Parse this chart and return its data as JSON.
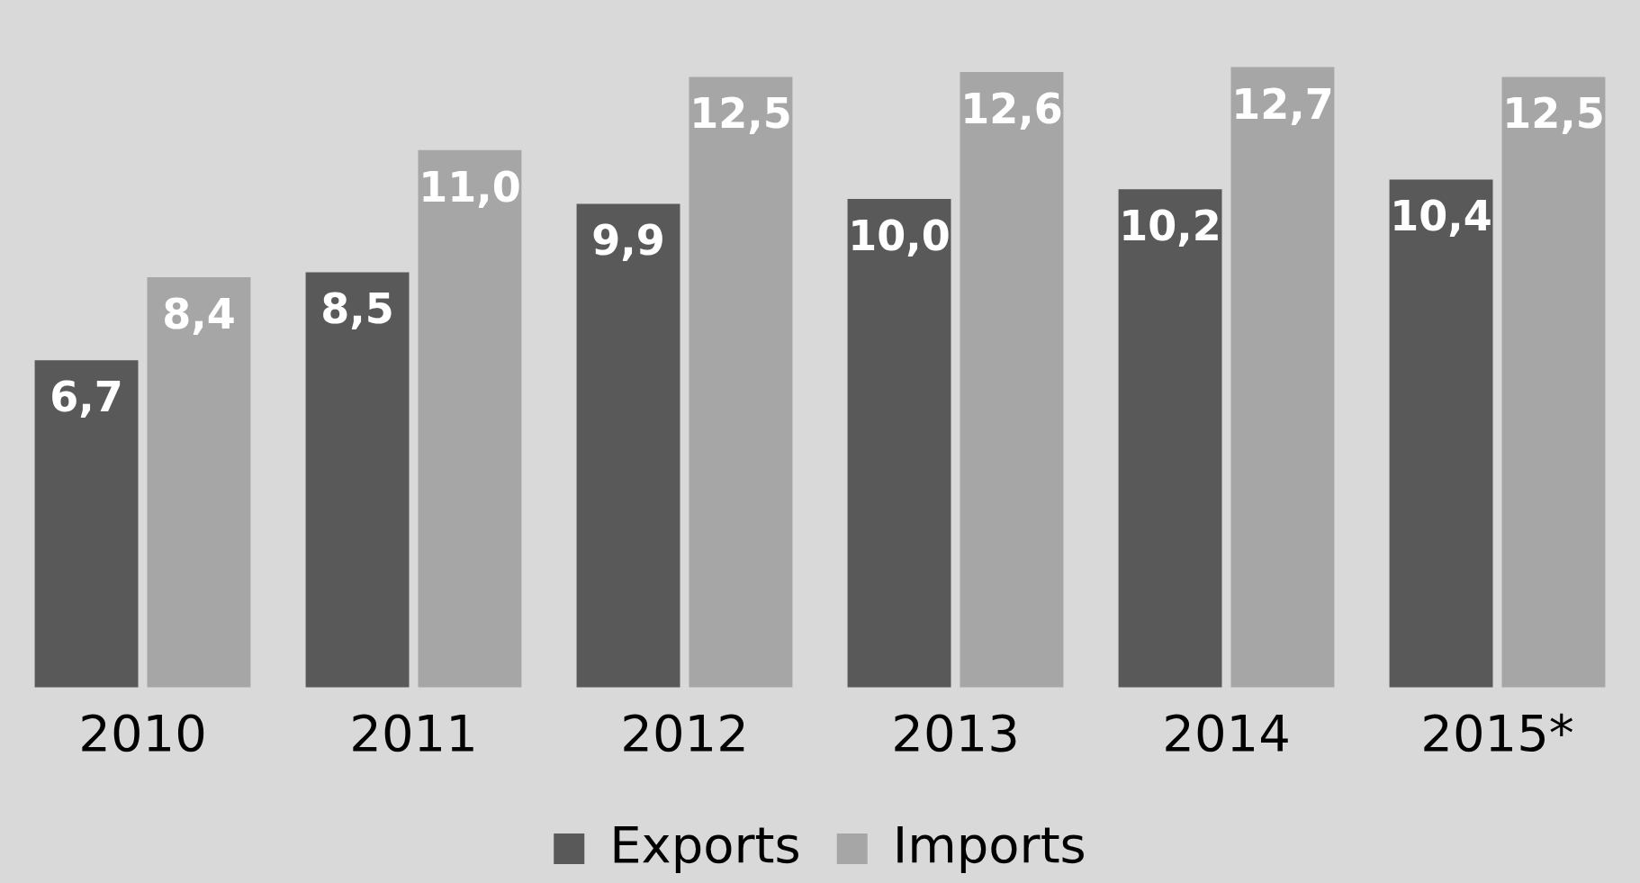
{
  "chart_data": {
    "type": "bar",
    "categories": [
      "2010",
      "2011",
      "2012",
      "2013",
      "2014",
      "2015*"
    ],
    "series": [
      {
        "name": "Exports",
        "color": "#595959",
        "values": [
          6.7,
          8.5,
          9.9,
          10.0,
          10.2,
          10.4
        ],
        "value_labels": [
          "6,7",
          "8,5",
          "9,9",
          "10,0",
          "10,2",
          "10,4"
        ]
      },
      {
        "name": "Imports",
        "color": "#a6a6a6",
        "values": [
          8.4,
          11.0,
          12.5,
          12.6,
          12.7,
          12.5
        ],
        "value_labels": [
          "8,4",
          "11,0",
          "12,5",
          "12,6",
          "12,7",
          "12,5"
        ]
      }
    ],
    "legend": "bottom",
    "grid": false
  }
}
